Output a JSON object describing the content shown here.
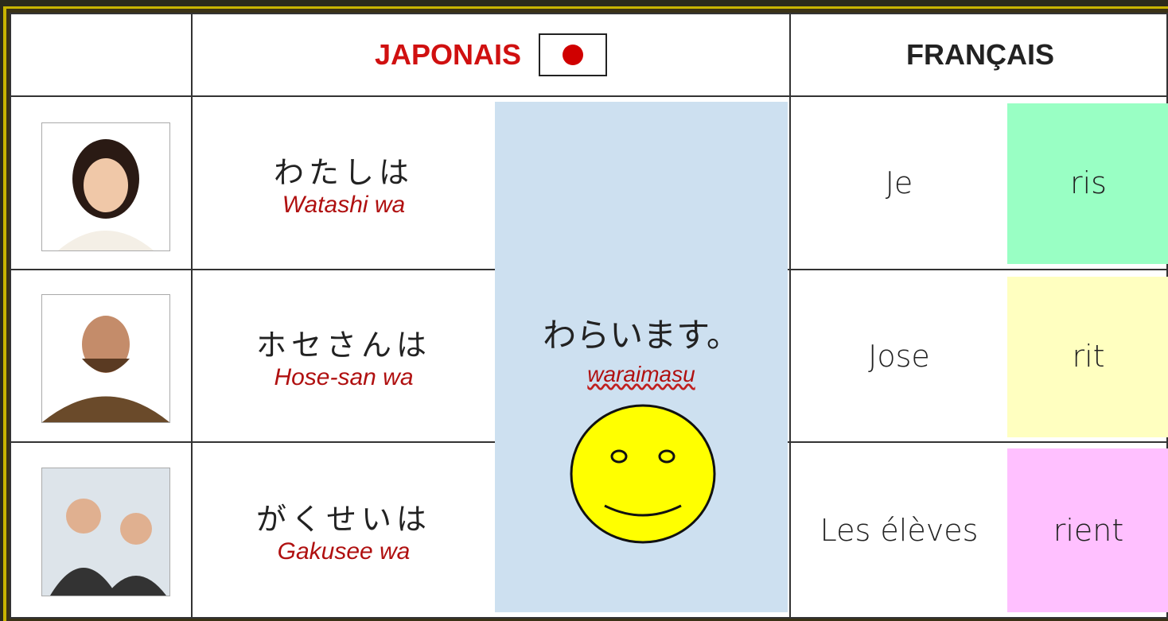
{
  "header": {
    "japanese": "JAPONAIS",
    "french": "FRANÇAIS"
  },
  "rows": [
    {
      "japanese": "わたしは",
      "romaji": "Watashi wa",
      "french_subject": "Je",
      "french_verb": "ris"
    },
    {
      "japanese": "ホセさんは",
      "romaji": "Hose-san wa",
      "french_subject": "Jose",
      "french_verb": "rit"
    },
    {
      "japanese": "がくせいは",
      "romaji": "Gakusee wa",
      "french_subject": "Les élèves",
      "french_verb": "rient"
    }
  ],
  "verb": {
    "japanese": "わらいます。",
    "romaji": "waraimasu"
  }
}
